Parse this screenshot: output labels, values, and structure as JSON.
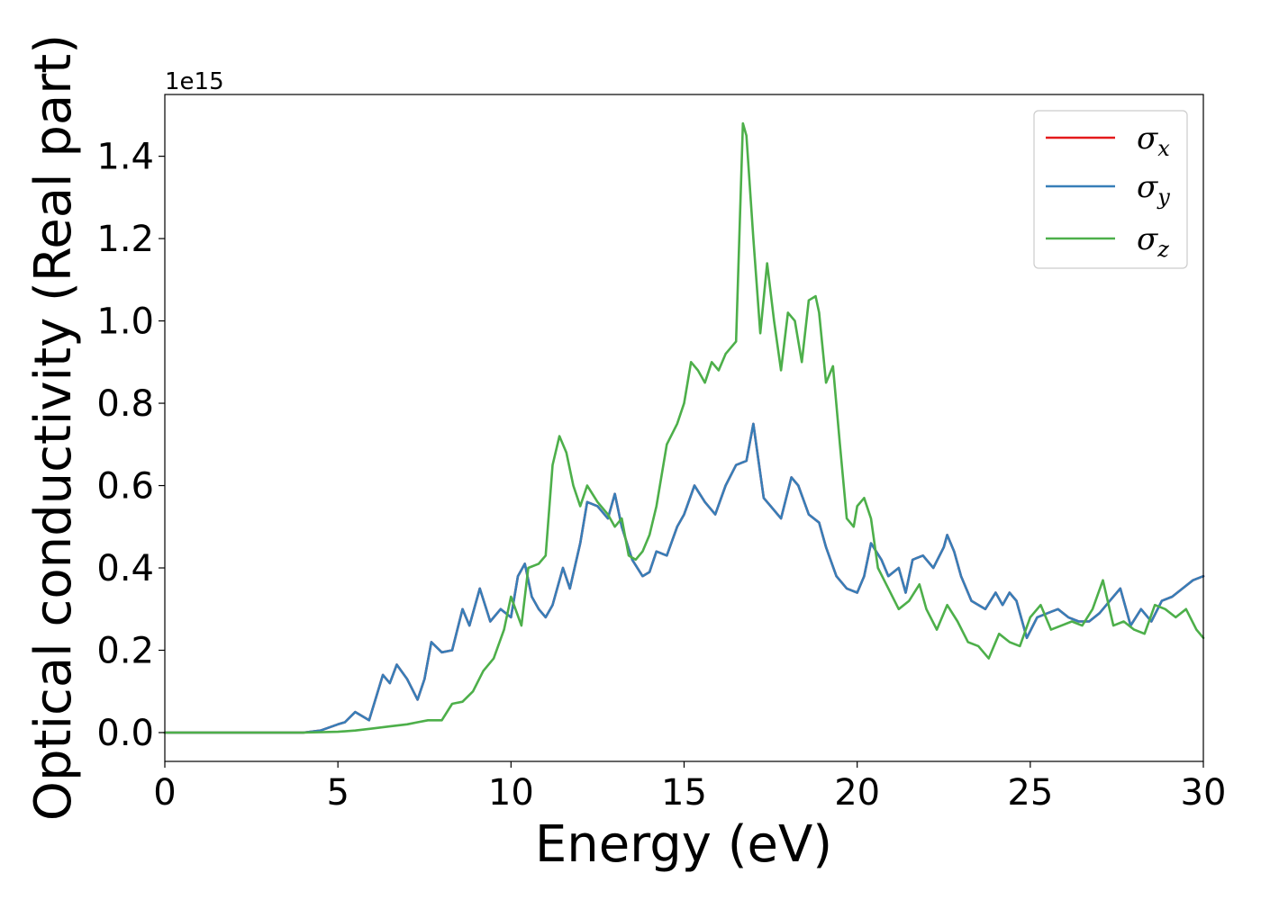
{
  "chart_data": {
    "type": "line",
    "xlabel": "Energy (eV)",
    "ylabel": "Optical conductivity (Real part)",
    "y_offset_label": "1e15",
    "xlim": [
      0,
      30
    ],
    "ylim": [
      -0.07,
      1.55
    ],
    "y_scale_factor": 1000000000000000.0,
    "x_ticks": [
      0,
      5,
      10,
      15,
      20,
      25,
      30
    ],
    "x_tick_labels": [
      "0",
      "5",
      "10",
      "15",
      "20",
      "25",
      "30"
    ],
    "y_ticks": [
      0.0,
      0.2,
      0.4,
      0.6,
      0.8,
      1.0,
      1.2,
      1.4
    ],
    "y_tick_labels": [
      "0.0",
      "0.2",
      "0.4",
      "0.6",
      "0.8",
      "1.0",
      "1.2",
      "1.4"
    ],
    "grid": false,
    "legend_position": "top-right",
    "series": [
      {
        "name": "σx",
        "legend_symbol": "σ",
        "legend_subscript": "x",
        "color": "#e41a1c",
        "x": [
          0,
          4,
          4.5,
          5.0,
          5.2,
          5.5,
          5.9,
          6.3,
          6.5,
          6.7,
          7.0,
          7.3,
          7.5,
          7.7,
          8.0,
          8.3,
          8.6,
          8.8,
          9.1,
          9.4,
          9.7,
          10.0,
          10.2,
          10.4,
          10.6,
          10.8,
          11.0,
          11.2,
          11.5,
          11.7,
          12.0,
          12.2,
          12.5,
          12.8,
          13.0,
          13.2,
          13.5,
          13.8,
          14.0,
          14.2,
          14.5,
          14.8,
          15.0,
          15.3,
          15.6,
          15.9,
          16.2,
          16.5,
          16.8,
          17.0,
          17.3,
          17.5,
          17.8,
          18.1,
          18.3,
          18.6,
          18.9,
          19.1,
          19.4,
          19.7,
          20.0,
          20.2,
          20.4,
          20.7,
          20.9,
          21.2,
          21.4,
          21.6,
          21.9,
          22.2,
          22.5,
          22.6,
          22.8,
          23.0,
          23.3,
          23.7,
          24.0,
          24.2,
          24.4,
          24.6,
          24.9,
          25.2,
          25.5,
          25.8,
          26.1,
          26.4,
          26.7,
          27.0,
          27.3,
          27.6,
          27.9,
          28.2,
          28.5,
          28.8,
          29.1,
          29.4,
          29.7,
          30.0
        ],
        "values": [
          0.0,
          0.0,
          0.005,
          0.02,
          0.025,
          0.05,
          0.03,
          0.14,
          0.12,
          0.165,
          0.13,
          0.08,
          0.13,
          0.22,
          0.195,
          0.2,
          0.3,
          0.26,
          0.35,
          0.27,
          0.3,
          0.28,
          0.38,
          0.41,
          0.33,
          0.3,
          0.28,
          0.31,
          0.4,
          0.35,
          0.46,
          0.56,
          0.55,
          0.52,
          0.58,
          0.5,
          0.42,
          0.38,
          0.39,
          0.44,
          0.43,
          0.5,
          0.53,
          0.6,
          0.56,
          0.53,
          0.6,
          0.65,
          0.66,
          0.75,
          0.57,
          0.55,
          0.52,
          0.62,
          0.6,
          0.53,
          0.51,
          0.45,
          0.38,
          0.35,
          0.34,
          0.38,
          0.46,
          0.42,
          0.38,
          0.4,
          0.34,
          0.42,
          0.43,
          0.4,
          0.45,
          0.48,
          0.44,
          0.38,
          0.32,
          0.3,
          0.34,
          0.31,
          0.34,
          0.32,
          0.23,
          0.28,
          0.29,
          0.3,
          0.28,
          0.27,
          0.27,
          0.29,
          0.32,
          0.35,
          0.26,
          0.3,
          0.27,
          0.32,
          0.33,
          0.35,
          0.37,
          0.38
        ]
      },
      {
        "name": "σy",
        "legend_symbol": "σ",
        "legend_subscript": "y",
        "color": "#377eb8",
        "x": [
          0,
          4,
          4.5,
          5.0,
          5.2,
          5.5,
          5.9,
          6.3,
          6.5,
          6.7,
          7.0,
          7.3,
          7.5,
          7.7,
          8.0,
          8.3,
          8.6,
          8.8,
          9.1,
          9.4,
          9.7,
          10.0,
          10.2,
          10.4,
          10.6,
          10.8,
          11.0,
          11.2,
          11.5,
          11.7,
          12.0,
          12.2,
          12.5,
          12.8,
          13.0,
          13.2,
          13.5,
          13.8,
          14.0,
          14.2,
          14.5,
          14.8,
          15.0,
          15.3,
          15.6,
          15.9,
          16.2,
          16.5,
          16.8,
          17.0,
          17.3,
          17.5,
          17.8,
          18.1,
          18.3,
          18.6,
          18.9,
          19.1,
          19.4,
          19.7,
          20.0,
          20.2,
          20.4,
          20.7,
          20.9,
          21.2,
          21.4,
          21.6,
          21.9,
          22.2,
          22.5,
          22.6,
          22.8,
          23.0,
          23.3,
          23.7,
          24.0,
          24.2,
          24.4,
          24.6,
          24.9,
          25.2,
          25.5,
          25.8,
          26.1,
          26.4,
          26.7,
          27.0,
          27.3,
          27.6,
          27.9,
          28.2,
          28.5,
          28.8,
          29.1,
          29.4,
          29.7,
          30.0
        ],
        "values": [
          0.0,
          0.0,
          0.005,
          0.02,
          0.025,
          0.05,
          0.03,
          0.14,
          0.12,
          0.165,
          0.13,
          0.08,
          0.13,
          0.22,
          0.195,
          0.2,
          0.3,
          0.26,
          0.35,
          0.27,
          0.3,
          0.28,
          0.38,
          0.41,
          0.33,
          0.3,
          0.28,
          0.31,
          0.4,
          0.35,
          0.46,
          0.56,
          0.55,
          0.52,
          0.58,
          0.5,
          0.42,
          0.38,
          0.39,
          0.44,
          0.43,
          0.5,
          0.53,
          0.6,
          0.56,
          0.53,
          0.6,
          0.65,
          0.66,
          0.75,
          0.57,
          0.55,
          0.52,
          0.62,
          0.6,
          0.53,
          0.51,
          0.45,
          0.38,
          0.35,
          0.34,
          0.38,
          0.46,
          0.42,
          0.38,
          0.4,
          0.34,
          0.42,
          0.43,
          0.4,
          0.45,
          0.48,
          0.44,
          0.38,
          0.32,
          0.3,
          0.34,
          0.31,
          0.34,
          0.32,
          0.23,
          0.28,
          0.29,
          0.3,
          0.28,
          0.27,
          0.27,
          0.29,
          0.32,
          0.35,
          0.26,
          0.3,
          0.27,
          0.32,
          0.33,
          0.35,
          0.37,
          0.38
        ]
      },
      {
        "name": "σz",
        "legend_symbol": "σ",
        "legend_subscript": "z",
        "color": "#4daf4a",
        "x": [
          0,
          4,
          5.0,
          5.5,
          6.0,
          6.5,
          7.0,
          7.3,
          7.6,
          8.0,
          8.3,
          8.6,
          8.9,
          9.2,
          9.5,
          9.8,
          10.0,
          10.3,
          10.5,
          10.8,
          11.0,
          11.2,
          11.4,
          11.6,
          11.8,
          12.0,
          12.2,
          12.5,
          12.8,
          13.0,
          13.2,
          13.4,
          13.6,
          13.8,
          14.0,
          14.2,
          14.5,
          14.8,
          15.0,
          15.2,
          15.4,
          15.6,
          15.8,
          16.0,
          16.2,
          16.5,
          16.7,
          16.8,
          17.0,
          17.2,
          17.4,
          17.6,
          17.8,
          18.0,
          18.2,
          18.4,
          18.6,
          18.8,
          18.9,
          19.1,
          19.3,
          19.5,
          19.7,
          19.9,
          20.0,
          20.2,
          20.4,
          20.6,
          20.9,
          21.2,
          21.5,
          21.8,
          22.0,
          22.3,
          22.6,
          22.9,
          23.2,
          23.5,
          23.8,
          24.1,
          24.4,
          24.7,
          25.0,
          25.3,
          25.6,
          25.9,
          26.2,
          26.5,
          26.8,
          27.1,
          27.4,
          27.7,
          28.0,
          28.3,
          28.6,
          28.9,
          29.2,
          29.5,
          29.8,
          30.0
        ],
        "values": [
          0.0,
          0.0,
          0.002,
          0.005,
          0.01,
          0.015,
          0.02,
          0.025,
          0.03,
          0.03,
          0.07,
          0.075,
          0.1,
          0.15,
          0.18,
          0.25,
          0.33,
          0.26,
          0.4,
          0.41,
          0.43,
          0.65,
          0.72,
          0.68,
          0.6,
          0.55,
          0.6,
          0.56,
          0.53,
          0.5,
          0.52,
          0.43,
          0.42,
          0.44,
          0.48,
          0.55,
          0.7,
          0.75,
          0.8,
          0.9,
          0.88,
          0.85,
          0.9,
          0.88,
          0.92,
          0.95,
          1.48,
          1.45,
          1.2,
          0.97,
          1.14,
          1.0,
          0.88,
          1.02,
          1.0,
          0.9,
          1.05,
          1.06,
          1.02,
          0.85,
          0.89,
          0.7,
          0.52,
          0.5,
          0.55,
          0.57,
          0.52,
          0.4,
          0.35,
          0.3,
          0.32,
          0.36,
          0.3,
          0.25,
          0.31,
          0.27,
          0.22,
          0.21,
          0.18,
          0.24,
          0.22,
          0.21,
          0.28,
          0.31,
          0.25,
          0.26,
          0.27,
          0.26,
          0.3,
          0.37,
          0.26,
          0.27,
          0.25,
          0.24,
          0.31,
          0.3,
          0.28,
          0.3,
          0.25,
          0.23
        ]
      }
    ]
  }
}
